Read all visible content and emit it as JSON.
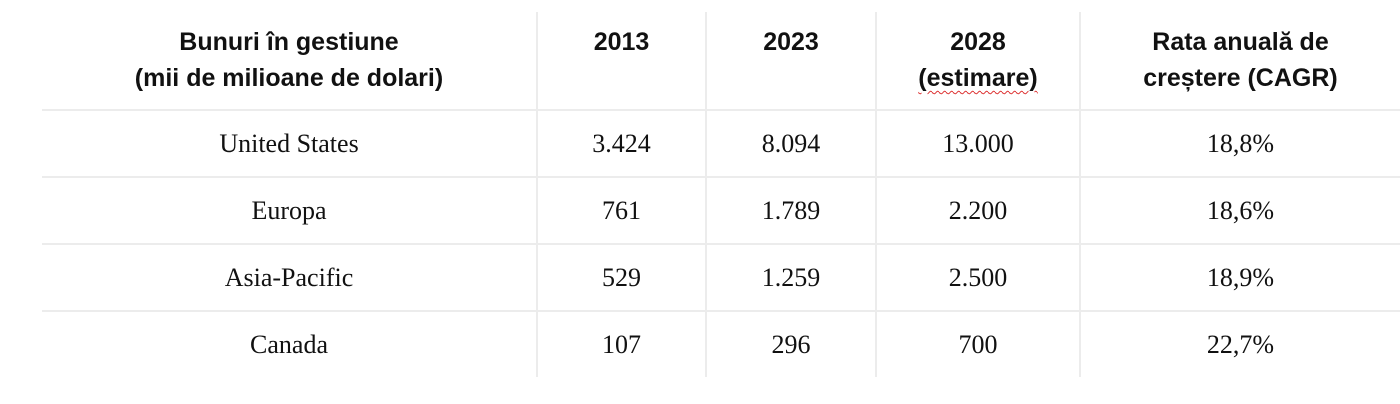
{
  "table": {
    "header": [
      [
        "Bunuri în gestiune",
        "(mii de milioane de dolari)"
      ],
      [
        "2013"
      ],
      [
        "2023"
      ],
      [
        "2028",
        "(estimare)"
      ],
      [
        "Rata anuală de",
        "creștere (CAGR)"
      ]
    ],
    "rows": [
      [
        "United States",
        "3.424",
        "8.094",
        "13.000",
        "18,8%"
      ],
      [
        "Europa",
        "761",
        "1.789",
        "2.200",
        "18,6%"
      ],
      [
        "Asia-Pacific",
        "529",
        "1.259",
        "2.500",
        "18,9%"
      ],
      [
        "Canada",
        "107",
        "296",
        "700",
        "22,7%"
      ]
    ]
  }
}
